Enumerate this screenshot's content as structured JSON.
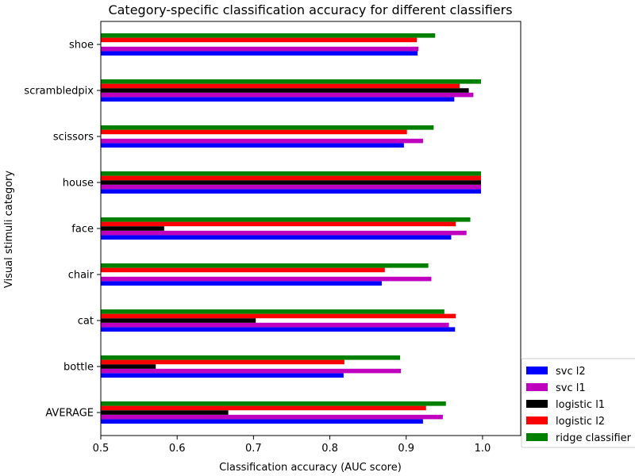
{
  "chart_data": {
    "type": "bar",
    "orientation": "horizontal",
    "title": "Category-specific classification accuracy for different classifiers",
    "xlabel": "Classification accuracy (AUC score)",
    "ylabel": "Visual stimuli category",
    "xlim": [
      0.5,
      1.05
    ],
    "xticks": [
      "0.5",
      "0.6",
      "0.7",
      "0.8",
      "0.9",
      "1.0"
    ],
    "grid": false,
    "legend_position": "lower-right, outside axes",
    "categories": [
      "AVERAGE",
      "bottle",
      "cat",
      "chair",
      "face",
      "house",
      "scissors",
      "scrambledpix",
      "shoe"
    ],
    "series": [
      {
        "name": "svc l2",
        "color": "#0000ff",
        "values": [
          0.922,
          0.818,
          0.964,
          0.868,
          0.959,
          0.998,
          0.897,
          0.963,
          0.915
        ]
      },
      {
        "name": "svc l1",
        "color": "#bf00bf",
        "values": [
          0.948,
          0.893,
          0.956,
          0.933,
          0.979,
          0.998,
          0.922,
          0.988,
          0.916
        ]
      },
      {
        "name": "logistic l1",
        "color": "#000000",
        "values": [
          0.667,
          0.572,
          0.703,
          null,
          0.583,
          0.998,
          null,
          0.982,
          null
        ]
      },
      {
        "name": "logistic l2",
        "color": "#ff0000",
        "values": [
          0.926,
          0.819,
          0.965,
          0.872,
          0.965,
          0.998,
          0.901,
          0.97,
          0.914
        ]
      },
      {
        "name": "ridge classifier",
        "color": "#008000",
        "values": [
          0.952,
          0.892,
          0.95,
          0.929,
          0.984,
          0.998,
          0.936,
          0.998,
          0.938
        ]
      }
    ]
  }
}
